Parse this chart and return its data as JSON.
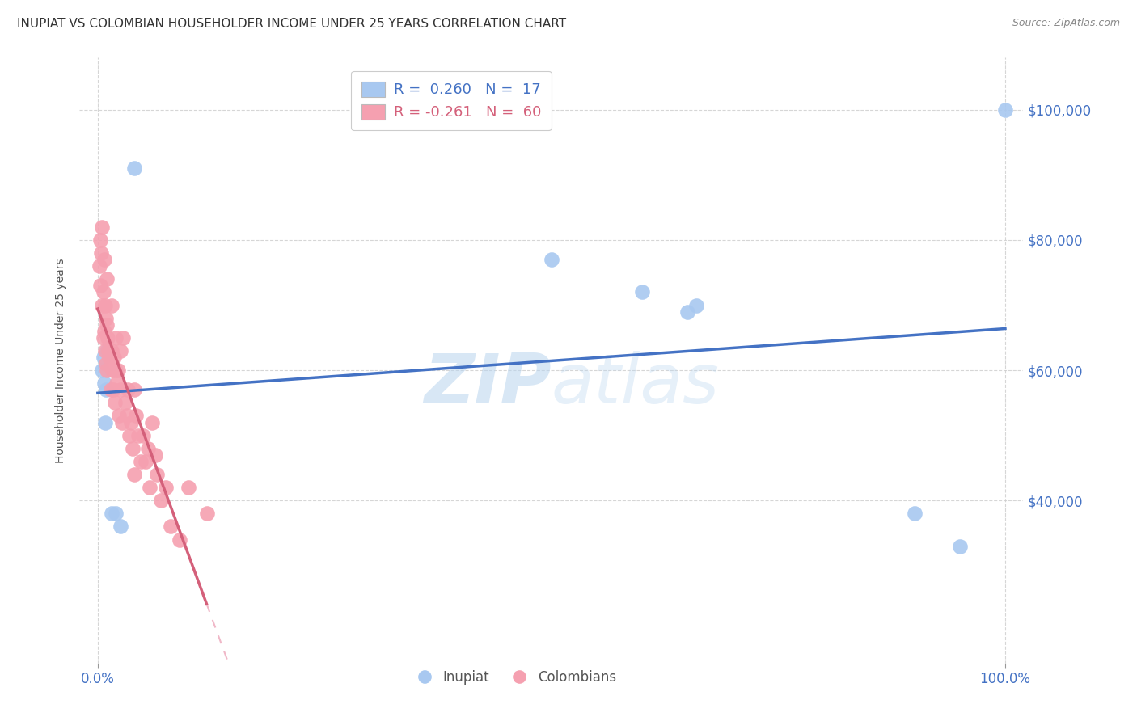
{
  "title": "INUPIAT VS COLOMBIAN HOUSEHOLDER INCOME UNDER 25 YEARS CORRELATION CHART",
  "source": "Source: ZipAtlas.com",
  "ylabel": "Householder Income Under 25 years",
  "watermark": "ZIP atlas",
  "inupiat_R": 0.26,
  "inupiat_N": 17,
  "colombian_R": -0.261,
  "colombian_N": 60,
  "xlim": [
    -0.02,
    1.02
  ],
  "ylim": [
    15000,
    108000
  ],
  "yticks": [
    20000,
    40000,
    60000,
    80000,
    100000
  ],
  "ytick_labels": [
    "",
    "$40,000",
    "$60,000",
    "$80,000",
    "$100,000"
  ],
  "inupiat_color": "#a8c8f0",
  "colombian_color": "#f5a0b0",
  "inupiat_line_color": "#4472c4",
  "colombian_line_color": "#d4607a",
  "colombian_line_dash_color": "#f0b8c8",
  "background_color": "#ffffff",
  "inupiat_x": [
    0.005,
    0.006,
    0.007,
    0.008,
    0.009,
    0.01,
    0.015,
    0.02,
    0.025,
    0.04,
    0.5,
    0.6,
    0.65,
    0.66,
    0.9,
    0.95,
    1.0
  ],
  "inupiat_y": [
    60000,
    62000,
    58000,
    52000,
    57000,
    63000,
    38000,
    38000,
    36000,
    91000,
    77000,
    72000,
    69000,
    70000,
    38000,
    33000,
    100000
  ],
  "colombian_x": [
    0.002,
    0.003,
    0.003,
    0.004,
    0.005,
    0.005,
    0.006,
    0.006,
    0.007,
    0.007,
    0.008,
    0.008,
    0.009,
    0.009,
    0.01,
    0.01,
    0.01,
    0.011,
    0.012,
    0.013,
    0.014,
    0.015,
    0.015,
    0.016,
    0.017,
    0.018,
    0.019,
    0.02,
    0.02,
    0.021,
    0.022,
    0.023,
    0.025,
    0.025,
    0.027,
    0.028,
    0.03,
    0.032,
    0.033,
    0.035,
    0.037,
    0.038,
    0.04,
    0.04,
    0.042,
    0.045,
    0.047,
    0.05,
    0.053,
    0.055,
    0.057,
    0.06,
    0.063,
    0.065,
    0.07,
    0.075,
    0.08,
    0.09,
    0.1,
    0.12
  ],
  "colombian_y": [
    76000,
    80000,
    73000,
    78000,
    82000,
    70000,
    72000,
    65000,
    77000,
    66000,
    70000,
    63000,
    68000,
    61000,
    74000,
    67000,
    60000,
    65000,
    63000,
    62000,
    57000,
    70000,
    63000,
    60000,
    57000,
    62000,
    55000,
    65000,
    60000,
    58000,
    60000,
    53000,
    63000,
    57000,
    52000,
    65000,
    55000,
    53000,
    57000,
    50000,
    52000,
    48000,
    57000,
    44000,
    53000,
    50000,
    46000,
    50000,
    46000,
    48000,
    42000,
    52000,
    47000,
    44000,
    40000,
    42000,
    36000,
    34000,
    42000,
    38000
  ]
}
